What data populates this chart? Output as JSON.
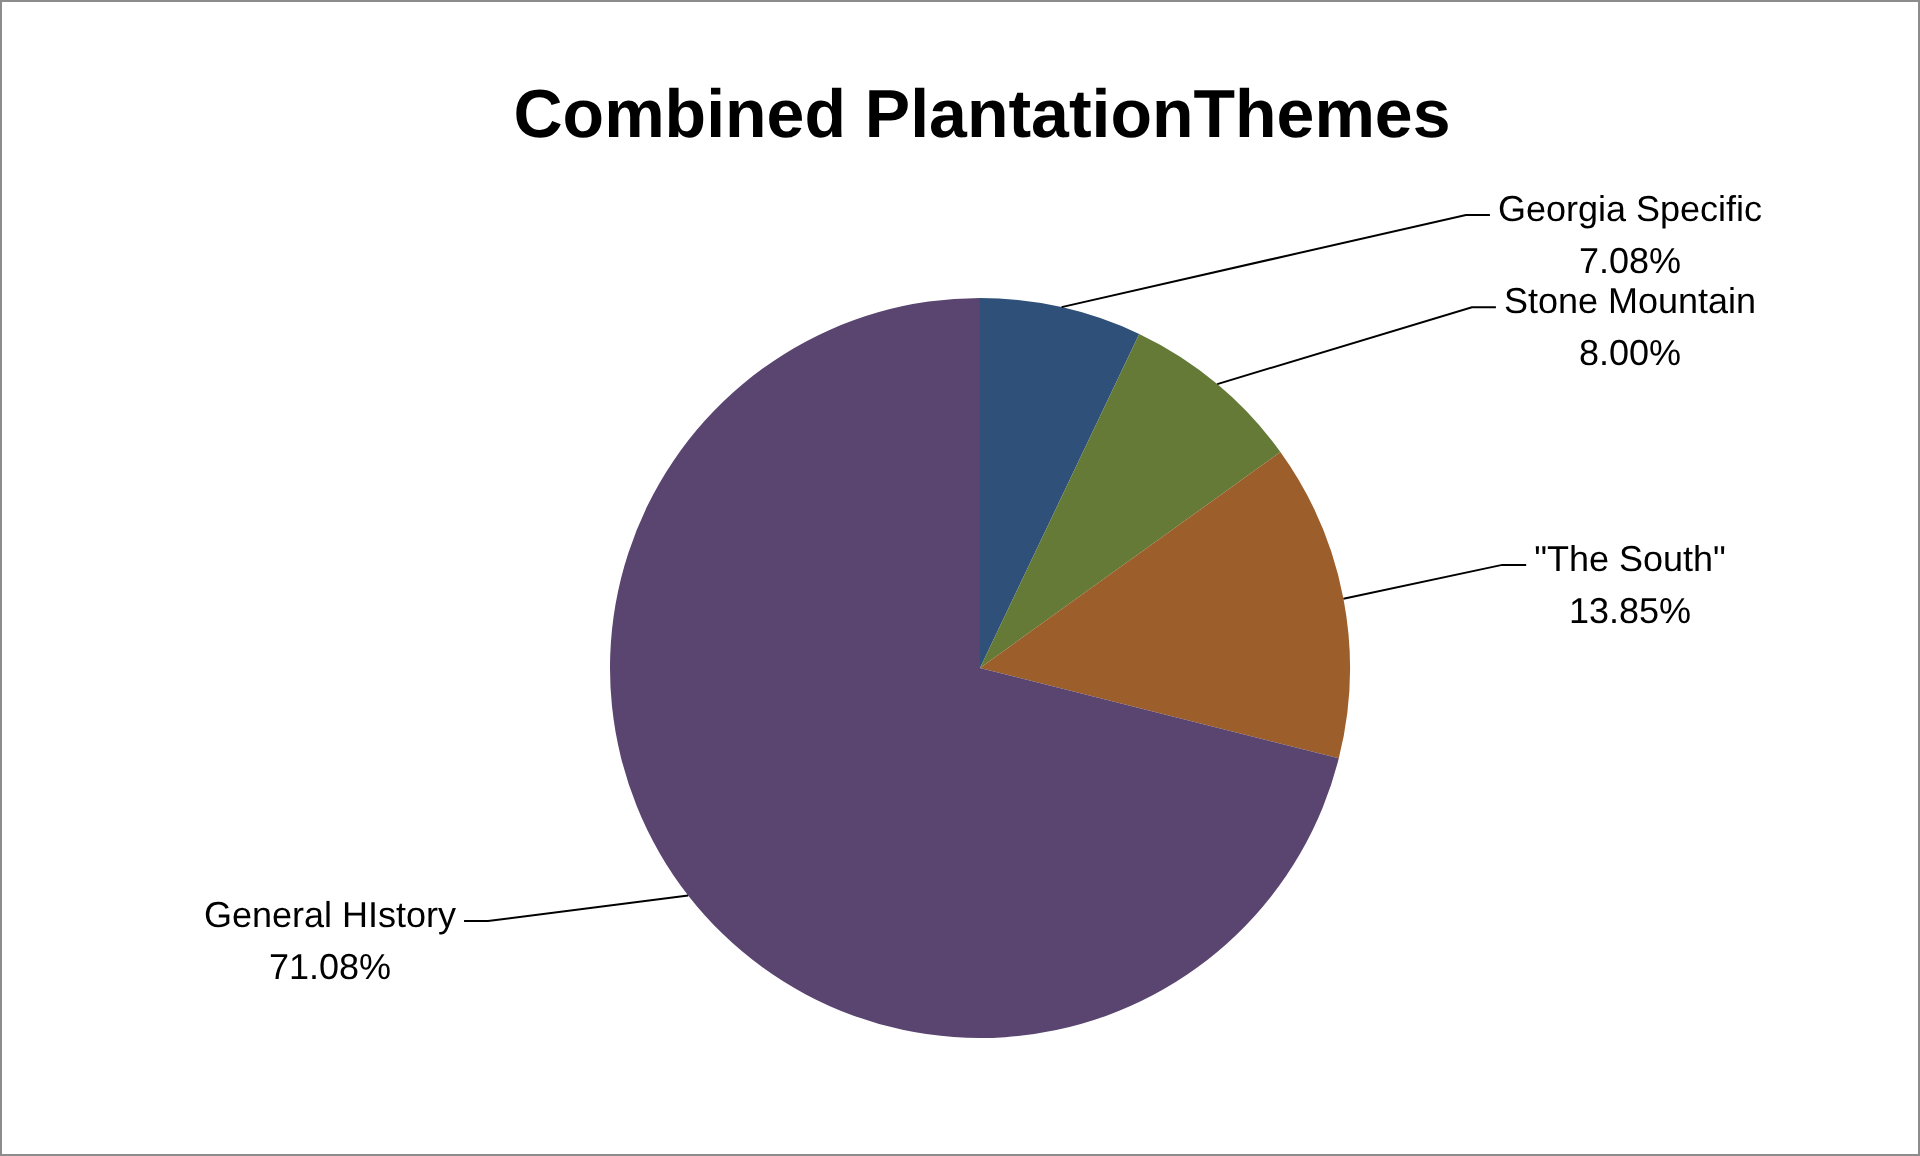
{
  "chart_data": {
    "type": "pie",
    "title": "Combined PlantationThemes",
    "categories": [
      "Georgia Specific",
      "Stone Mountain",
      "\"The South\"",
      "General HIstory"
    ],
    "values": [
      7.08,
      8.0,
      13.85,
      71.08
    ],
    "value_labels": [
      "7.08%",
      "8.00%",
      "13.85%",
      "71.08%"
    ],
    "colors": [
      "#2f5079",
      "#657a37",
      "#9c5e2a",
      "#5a4570"
    ],
    "legend": false
  }
}
